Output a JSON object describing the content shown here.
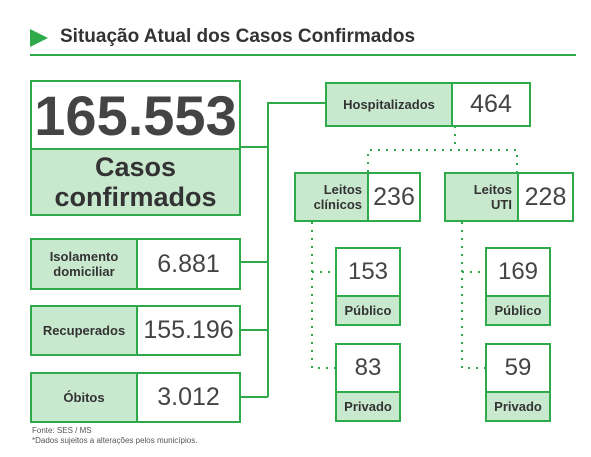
{
  "header": {
    "title": "Situação Atual dos Casos Confirmados"
  },
  "total": {
    "value": "165.553",
    "label": "Casos confirmados"
  },
  "summary": [
    {
      "label": "Isolamento domiciliar",
      "value": "6.881"
    },
    {
      "label": "Recuperados",
      "value": "155.196"
    },
    {
      "label": "Óbitos",
      "value": "3.012"
    }
  ],
  "hospitalized": {
    "label": "Hospitalizados",
    "value": "464"
  },
  "beds": [
    {
      "label": "Leitos clínicos",
      "value": "236",
      "public": {
        "value": "153",
        "label": "Público"
      },
      "private": {
        "value": "83",
        "label": "Privado"
      }
    },
    {
      "label": "Leitos UTI",
      "value": "228",
      "public": {
        "value": "169",
        "label": "Público"
      },
      "private": {
        "value": "59",
        "label": "Privado"
      }
    }
  ],
  "footer": [
    "Fonte: SES / MS",
    "*Dados sujeitos a alterações pelos municípios."
  ]
}
